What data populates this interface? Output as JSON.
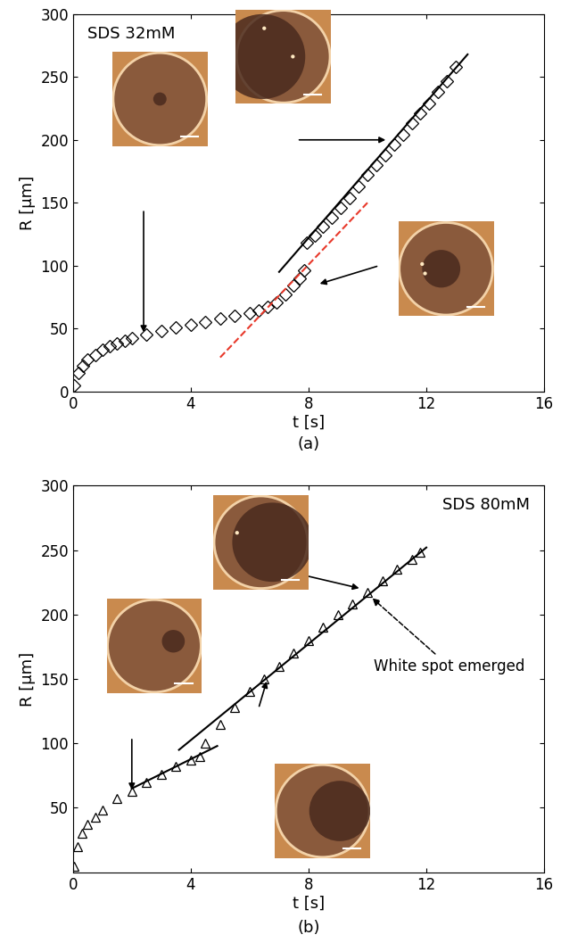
{
  "chart_data": [
    {
      "type": "scatter",
      "title": "SDS 32mM",
      "caption": "(a)",
      "x_label": "t [s]",
      "y_label": "R [μm]",
      "xlim": [
        0,
        16
      ],
      "ylim": [
        0,
        300
      ],
      "xticks": [
        0,
        4,
        8,
        12,
        16
      ],
      "yticks": [
        0,
        50,
        100,
        150,
        200,
        250,
        300
      ],
      "series": [
        {
          "type": "scatter",
          "marker": "diamond",
          "color": "#000000",
          "x": [
            0.05,
            0.2,
            0.35,
            0.5,
            0.75,
            1.0,
            1.25,
            1.5,
            1.75,
            2.0,
            2.5,
            3.0,
            3.5,
            4.0,
            4.5,
            5.0,
            5.5,
            6.0,
            6.3,
            6.6,
            6.9,
            7.2,
            7.5,
            7.7,
            7.85,
            7.95,
            8.2,
            8.5,
            8.8,
            9.1,
            9.4,
            9.7,
            10.0,
            10.3,
            10.6,
            10.9,
            11.2,
            11.5,
            11.8,
            12.1,
            12.4,
            12.7,
            13.0
          ],
          "values": [
            5,
            15,
            20,
            25,
            29,
            33,
            36,
            38,
            40,
            42,
            45,
            48,
            51,
            53,
            55,
            58,
            60,
            62,
            64,
            67,
            71,
            77,
            84,
            90,
            96,
            118,
            124,
            131,
            138,
            146,
            154,
            163,
            172,
            180,
            188,
            196,
            204,
            213,
            221,
            229,
            238,
            247,
            258
          ]
        },
        {
          "type": "line",
          "line_style": "solid",
          "color": "#000000",
          "x": [
            7.0,
            13.4
          ],
          "values": [
            95,
            268
          ]
        },
        {
          "type": "line",
          "line_style": "dashed",
          "color": "#e8392b",
          "x": [
            5.0,
            10.0
          ],
          "values": [
            27,
            150
          ]
        }
      ]
    },
    {
      "type": "scatter",
      "title": "SDS 80mM",
      "caption": "(b)",
      "x_label": "t [s]",
      "y_label": "R [μm]",
      "xlim": [
        0,
        16
      ],
      "ylim": [
        0,
        300
      ],
      "xticks": [
        0,
        4,
        8,
        12,
        16
      ],
      "yticks": [
        50,
        100,
        150,
        200,
        250,
        300
      ],
      "annotations": [
        {
          "text": "White spot emerged"
        }
      ],
      "series": [
        {
          "type": "scatter",
          "marker": "triangle",
          "color": "#000000",
          "x": [
            0.05,
            0.15,
            0.3,
            0.5,
            0.75,
            1.0,
            1.5,
            2.0,
            2.5,
            3.0,
            3.5,
            4.0,
            4.3,
            4.5,
            5.0,
            5.5,
            6.0,
            6.5,
            7.0,
            7.5,
            8.0,
            8.5,
            9.0,
            9.5,
            10.0,
            10.5,
            11.0,
            11.5,
            11.8
          ],
          "values": [
            5,
            20,
            30,
            37,
            43,
            48,
            57,
            63,
            70,
            76,
            82,
            87,
            90,
            100,
            115,
            128,
            140,
            150,
            160,
            170,
            180,
            190,
            200,
            208,
            217,
            226,
            235,
            243,
            248
          ]
        },
        {
          "type": "line",
          "line_style": "solid",
          "color": "#000000",
          "x": [
            2.0,
            4.9
          ],
          "values": [
            65,
            98
          ]
        },
        {
          "type": "line",
          "line_style": "solid",
          "color": "#000000",
          "x": [
            3.6,
            12.0
          ],
          "values": [
            95,
            252
          ]
        }
      ]
    }
  ]
}
